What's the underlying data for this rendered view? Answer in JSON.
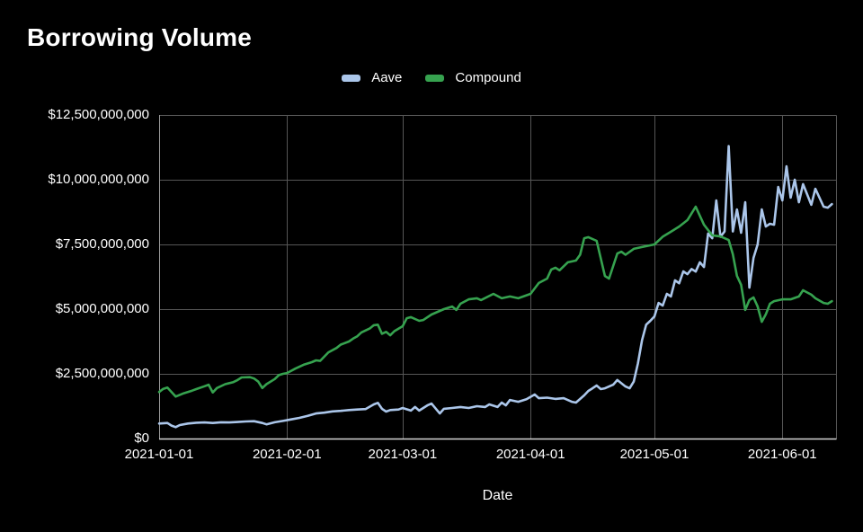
{
  "page": {
    "background": "#000000",
    "text_color": "#ffffff"
  },
  "title": "Borrowing Volume",
  "legend": {
    "position": "top-center",
    "items": [
      {
        "label": "Aave",
        "color": "#abc6ea"
      },
      {
        "label": "Compound",
        "color": "#36a24f"
      }
    ]
  },
  "chart_data": {
    "type": "line",
    "title": "Borrowing Volume",
    "xlabel": "Date",
    "ylabel": "",
    "grid": true,
    "legend_position": "top-center",
    "unit": "USD",
    "ylim": [
      0,
      12500000000.0
    ],
    "xlim": [
      "2021-01-01",
      "2021-06-14"
    ],
    "y_ticks": [
      {
        "label": "$0",
        "value": 0
      },
      {
        "label": "$2,500,000,000",
        "value": 2500000000.0
      },
      {
        "label": "$5,000,000,000",
        "value": 5000000000.0
      },
      {
        "label": "$7,500,000,000",
        "value": 7500000000.0
      },
      {
        "label": "$10,000,000,000",
        "value": 10000000000.0
      },
      {
        "label": "$12,500,000,000",
        "value": 12500000000.0
      }
    ],
    "x_ticks": [
      {
        "label": "2021-01-01",
        "value": "2021-01-01"
      },
      {
        "label": "2021-02-01",
        "value": "2021-02-01"
      },
      {
        "label": "2021-03-01",
        "value": "2021-03-01"
      },
      {
        "label": "2021-04-01",
        "value": "2021-04-01"
      },
      {
        "label": "2021-05-01",
        "value": "2021-05-01"
      },
      {
        "label": "2021-06-01",
        "value": "2021-06-01"
      }
    ],
    "series": [
      {
        "name": "Aave",
        "color": "#abc6ea",
        "points": [
          [
            "2021-01-01",
            580000000.0
          ],
          [
            "2021-01-03",
            600000000.0
          ],
          [
            "2021-01-04",
            500000000.0
          ],
          [
            "2021-01-05",
            440000000.0
          ],
          [
            "2021-01-06",
            520000000.0
          ],
          [
            "2021-01-08",
            580000000.0
          ],
          [
            "2021-01-10",
            610000000.0
          ],
          [
            "2021-01-12",
            620000000.0
          ],
          [
            "2021-01-14",
            600000000.0
          ],
          [
            "2021-01-16",
            630000000.0
          ],
          [
            "2021-01-18",
            620000000.0
          ],
          [
            "2021-01-20",
            640000000.0
          ],
          [
            "2021-01-22",
            660000000.0
          ],
          [
            "2021-01-24",
            670000000.0
          ],
          [
            "2021-01-26",
            600000000.0
          ],
          [
            "2021-01-27",
            550000000.0
          ],
          [
            "2021-01-29",
            630000000.0
          ],
          [
            "2021-01-31",
            680000000.0
          ],
          [
            "2021-02-02",
            740000000.0
          ],
          [
            "2021-02-04",
            800000000.0
          ],
          [
            "2021-02-06",
            880000000.0
          ],
          [
            "2021-02-08",
            970000000.0
          ],
          [
            "2021-02-10",
            1000000000.0
          ],
          [
            "2021-02-12",
            1050000000.0
          ],
          [
            "2021-02-14",
            1070000000.0
          ],
          [
            "2021-02-16",
            1100000000.0
          ],
          [
            "2021-02-18",
            1120000000.0
          ],
          [
            "2021-02-20",
            1140000000.0
          ],
          [
            "2021-02-22",
            1320000000.0
          ],
          [
            "2021-02-23",
            1380000000.0
          ],
          [
            "2021-02-24",
            1150000000.0
          ],
          [
            "2021-02-25",
            1040000000.0
          ],
          [
            "2021-02-26",
            1100000000.0
          ],
          [
            "2021-02-28",
            1120000000.0
          ],
          [
            "2021-03-01",
            1180000000.0
          ],
          [
            "2021-03-03",
            1080000000.0
          ],
          [
            "2021-03-04",
            1220000000.0
          ],
          [
            "2021-03-05",
            1080000000.0
          ],
          [
            "2021-03-07",
            1280000000.0
          ],
          [
            "2021-03-08",
            1350000000.0
          ],
          [
            "2021-03-10",
            970000000.0
          ],
          [
            "2021-03-11",
            1150000000.0
          ],
          [
            "2021-03-13",
            1180000000.0
          ],
          [
            "2021-03-15",
            1220000000.0
          ],
          [
            "2021-03-17",
            1180000000.0
          ],
          [
            "2021-03-19",
            1250000000.0
          ],
          [
            "2021-03-21",
            1220000000.0
          ],
          [
            "2021-03-22",
            1320000000.0
          ],
          [
            "2021-03-24",
            1220000000.0
          ],
          [
            "2021-03-25",
            1390000000.0
          ],
          [
            "2021-03-26",
            1280000000.0
          ],
          [
            "2021-03-27",
            1490000000.0
          ],
          [
            "2021-03-29",
            1420000000.0
          ],
          [
            "2021-03-31",
            1520000000.0
          ],
          [
            "2021-04-02",
            1700000000.0
          ],
          [
            "2021-04-03",
            1560000000.0
          ],
          [
            "2021-04-05",
            1580000000.0
          ],
          [
            "2021-04-07",
            1530000000.0
          ],
          [
            "2021-04-09",
            1560000000.0
          ],
          [
            "2021-04-11",
            1420000000.0
          ],
          [
            "2021-04-12",
            1390000000.0
          ],
          [
            "2021-04-14",
            1670000000.0
          ],
          [
            "2021-04-15",
            1840000000.0
          ],
          [
            "2021-04-16",
            1940000000.0
          ],
          [
            "2021-04-17",
            2050000000.0
          ],
          [
            "2021-04-18",
            1910000000.0
          ],
          [
            "2021-04-19",
            1940000000.0
          ],
          [
            "2021-04-21",
            2080000000.0
          ],
          [
            "2021-04-22",
            2260000000.0
          ],
          [
            "2021-04-24",
            2010000000.0
          ],
          [
            "2021-04-25",
            1940000000.0
          ],
          [
            "2021-04-26",
            2200000000.0
          ],
          [
            "2021-04-27",
            2900000000.0
          ],
          [
            "2021-04-28",
            3800000000.0
          ],
          [
            "2021-04-29",
            4400000000.0
          ],
          [
            "2021-04-30",
            4550000000.0
          ],
          [
            "2021-05-01",
            4720000000.0
          ],
          [
            "2021-05-02",
            5240000000.0
          ],
          [
            "2021-05-03",
            5140000000.0
          ],
          [
            "2021-05-04",
            5590000000.0
          ],
          [
            "2021-05-05",
            5490000000.0
          ],
          [
            "2021-05-06",
            6110000000.0
          ],
          [
            "2021-05-07",
            6000000000.0
          ],
          [
            "2021-05-08",
            6460000000.0
          ],
          [
            "2021-05-09",
            6350000000.0
          ],
          [
            "2021-05-10",
            6550000000.0
          ],
          [
            "2021-05-11",
            6450000000.0
          ],
          [
            "2021-05-12",
            6810000000.0
          ],
          [
            "2021-05-13",
            6630000000.0
          ],
          [
            "2021-05-14",
            7920000000.0
          ],
          [
            "2021-05-15",
            7740000000.0
          ],
          [
            "2021-05-16",
            9200000000.0
          ],
          [
            "2021-05-17",
            7800000000.0
          ],
          [
            "2021-05-18",
            8000000000.0
          ],
          [
            "2021-05-19",
            11300000000.0
          ],
          [
            "2021-05-20",
            8000000000.0
          ],
          [
            "2021-05-21",
            8850000000.0
          ],
          [
            "2021-05-22",
            7950000000.0
          ],
          [
            "2021-05-23",
            9130000000.0
          ],
          [
            "2021-05-24",
            5830000000.0
          ],
          [
            "2021-05-25",
            6980000000.0
          ],
          [
            "2021-05-26",
            7500000000.0
          ],
          [
            "2021-05-27",
            8850000000.0
          ],
          [
            "2021-05-28",
            8190000000.0
          ],
          [
            "2021-05-29",
            8300000000.0
          ],
          [
            "2021-05-30",
            8260000000.0
          ],
          [
            "2021-05-31",
            9720000000.0
          ],
          [
            "2021-06-01",
            9200000000.0
          ],
          [
            "2021-06-02",
            10520000000.0
          ],
          [
            "2021-06-03",
            9310000000.0
          ],
          [
            "2021-06-04",
            10000000000.0
          ],
          [
            "2021-06-05",
            9130000000.0
          ],
          [
            "2021-06-06",
            9830000000.0
          ],
          [
            "2021-06-08",
            9030000000.0
          ],
          [
            "2021-06-09",
            9650000000.0
          ],
          [
            "2021-06-11",
            8960000000.0
          ],
          [
            "2021-06-12",
            8920000000.0
          ],
          [
            "2021-06-13",
            9060000000.0
          ]
        ]
      },
      {
        "name": "Compound",
        "color": "#36a24f",
        "points": [
          [
            "2021-01-01",
            1800000000.0
          ],
          [
            "2021-01-02",
            1920000000.0
          ],
          [
            "2021-01-03",
            1970000000.0
          ],
          [
            "2021-01-05",
            1620000000.0
          ],
          [
            "2021-01-07",
            1750000000.0
          ],
          [
            "2021-01-09",
            1850000000.0
          ],
          [
            "2021-01-10",
            1910000000.0
          ],
          [
            "2021-01-12",
            2020000000.0
          ],
          [
            "2021-01-13",
            2080000000.0
          ],
          [
            "2021-01-14",
            1780000000.0
          ],
          [
            "2021-01-15",
            1950000000.0
          ],
          [
            "2021-01-17",
            2100000000.0
          ],
          [
            "2021-01-19",
            2180000000.0
          ],
          [
            "2021-01-20",
            2260000000.0
          ],
          [
            "2021-01-21",
            2360000000.0
          ],
          [
            "2021-01-23",
            2370000000.0
          ],
          [
            "2021-01-24",
            2320000000.0
          ],
          [
            "2021-01-25",
            2200000000.0
          ],
          [
            "2021-01-26",
            1950000000.0
          ],
          [
            "2021-01-27",
            2100000000.0
          ],
          [
            "2021-01-29",
            2300000000.0
          ],
          [
            "2021-01-30",
            2450000000.0
          ],
          [
            "2021-01-31",
            2500000000.0
          ],
          [
            "2021-02-01",
            2530000000.0
          ],
          [
            "2021-02-03",
            2700000000.0
          ],
          [
            "2021-02-05",
            2850000000.0
          ],
          [
            "2021-02-07",
            2950000000.0
          ],
          [
            "2021-02-08",
            3020000000.0
          ],
          [
            "2021-02-09",
            3000000000.0
          ],
          [
            "2021-02-11",
            3330000000.0
          ],
          [
            "2021-02-13",
            3500000000.0
          ],
          [
            "2021-02-14",
            3630000000.0
          ],
          [
            "2021-02-16",
            3750000000.0
          ],
          [
            "2021-02-17",
            3860000000.0
          ],
          [
            "2021-02-18",
            3950000000.0
          ],
          [
            "2021-02-19",
            4100000000.0
          ],
          [
            "2021-02-21",
            4250000000.0
          ],
          [
            "2021-02-22",
            4380000000.0
          ],
          [
            "2021-02-23",
            4400000000.0
          ],
          [
            "2021-02-24",
            4050000000.0
          ],
          [
            "2021-02-25",
            4120000000.0
          ],
          [
            "2021-02-26",
            3990000000.0
          ],
          [
            "2021-02-27",
            4150000000.0
          ],
          [
            "2021-03-01",
            4340000000.0
          ],
          [
            "2021-03-02",
            4650000000.0
          ],
          [
            "2021-03-03",
            4690000000.0
          ],
          [
            "2021-03-05",
            4550000000.0
          ],
          [
            "2021-03-06",
            4580000000.0
          ],
          [
            "2021-03-08",
            4790000000.0
          ],
          [
            "2021-03-09",
            4860000000.0
          ],
          [
            "2021-03-11",
            5000000000.0
          ],
          [
            "2021-03-13",
            5100000000.0
          ],
          [
            "2021-03-14",
            4970000000.0
          ],
          [
            "2021-03-15",
            5210000000.0
          ],
          [
            "2021-03-17",
            5380000000.0
          ],
          [
            "2021-03-19",
            5420000000.0
          ],
          [
            "2021-03-20",
            5350000000.0
          ],
          [
            "2021-03-23",
            5590000000.0
          ],
          [
            "2021-03-25",
            5420000000.0
          ],
          [
            "2021-03-27",
            5490000000.0
          ],
          [
            "2021-03-29",
            5420000000.0
          ],
          [
            "2021-04-01",
            5590000000.0
          ],
          [
            "2021-04-03",
            6010000000.0
          ],
          [
            "2021-04-05",
            6180000000.0
          ],
          [
            "2021-04-06",
            6530000000.0
          ],
          [
            "2021-04-07",
            6600000000.0
          ],
          [
            "2021-04-08",
            6500000000.0
          ],
          [
            "2021-04-10",
            6810000000.0
          ],
          [
            "2021-04-12",
            6880000000.0
          ],
          [
            "2021-04-13",
            7100000000.0
          ],
          [
            "2021-04-14",
            7740000000.0
          ],
          [
            "2021-04-15",
            7780000000.0
          ],
          [
            "2021-04-17",
            7640000000.0
          ],
          [
            "2021-04-19",
            6280000000.0
          ],
          [
            "2021-04-20",
            6180000000.0
          ],
          [
            "2021-04-22",
            7150000000.0
          ],
          [
            "2021-04-23",
            7220000000.0
          ],
          [
            "2021-04-24",
            7100000000.0
          ],
          [
            "2021-04-26",
            7330000000.0
          ],
          [
            "2021-04-28",
            7400000000.0
          ],
          [
            "2021-05-01",
            7500000000.0
          ],
          [
            "2021-05-03",
            7800000000.0
          ],
          [
            "2021-05-05",
            7990000000.0
          ],
          [
            "2021-05-07",
            8190000000.0
          ],
          [
            "2021-05-09",
            8440000000.0
          ],
          [
            "2021-05-11",
            8960000000.0
          ],
          [
            "2021-05-13",
            8260000000.0
          ],
          [
            "2021-05-15",
            7850000000.0
          ],
          [
            "2021-05-17",
            7810000000.0
          ],
          [
            "2021-05-19",
            7670000000.0
          ],
          [
            "2021-05-20",
            7120000000.0
          ],
          [
            "2021-05-21",
            6280000000.0
          ],
          [
            "2021-05-22",
            5940000000.0
          ],
          [
            "2021-05-23",
            4970000000.0
          ],
          [
            "2021-05-24",
            5350000000.0
          ],
          [
            "2021-05-25",
            5450000000.0
          ],
          [
            "2021-05-26",
            5100000000.0
          ],
          [
            "2021-05-27",
            4510000000.0
          ],
          [
            "2021-05-28",
            4800000000.0
          ],
          [
            "2021-05-29",
            5210000000.0
          ],
          [
            "2021-05-30",
            5310000000.0
          ],
          [
            "2021-06-01",
            5380000000.0
          ],
          [
            "2021-06-03",
            5380000000.0
          ],
          [
            "2021-06-05",
            5490000000.0
          ],
          [
            "2021-06-06",
            5730000000.0
          ],
          [
            "2021-06-08",
            5560000000.0
          ],
          [
            "2021-06-09",
            5420000000.0
          ],
          [
            "2021-06-11",
            5240000000.0
          ],
          [
            "2021-06-12",
            5210000000.0
          ],
          [
            "2021-06-13",
            5310000000.0
          ]
        ]
      }
    ]
  }
}
